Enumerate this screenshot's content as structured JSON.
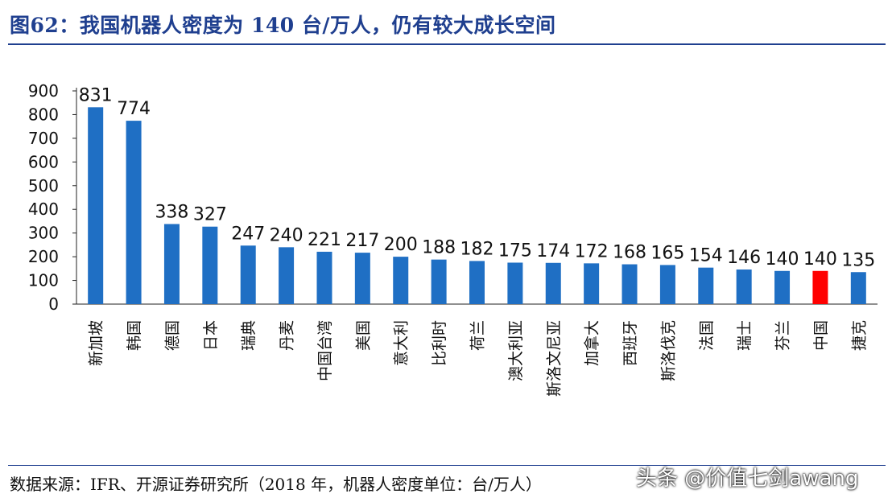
{
  "title": "图62：我国机器人密度为 140 台/万人，仍有较大成长空间",
  "source": "数据来源：IFR、开源证券研究所（2018 年，机器人密度单位：台/万人）",
  "watermark": "头条 @价值七剑awang",
  "colors": {
    "bar": "#1f6fc4",
    "highlight": "#ff0000",
    "title": "#1f3f8f"
  },
  "chart_data": {
    "type": "bar",
    "categories": [
      "新加坡",
      "韩国",
      "德国",
      "日本",
      "瑞典",
      "丹麦",
      "中国台湾",
      "美国",
      "意大利",
      "比利时",
      "荷兰",
      "澳大利亚",
      "斯洛文尼亚",
      "加拿大",
      "西班牙",
      "斯洛伐克",
      "法国",
      "瑞士",
      "芬兰",
      "中国",
      "捷克"
    ],
    "values": [
      831,
      774,
      338,
      327,
      247,
      240,
      221,
      217,
      200,
      188,
      182,
      175,
      174,
      172,
      168,
      165,
      154,
      146,
      140,
      140,
      135
    ],
    "highlight": "中国",
    "ylim": [
      0,
      900
    ],
    "yticks": [
      0,
      100,
      200,
      300,
      400,
      500,
      600,
      700,
      800,
      900
    ],
    "grid": false,
    "legend": false
  }
}
